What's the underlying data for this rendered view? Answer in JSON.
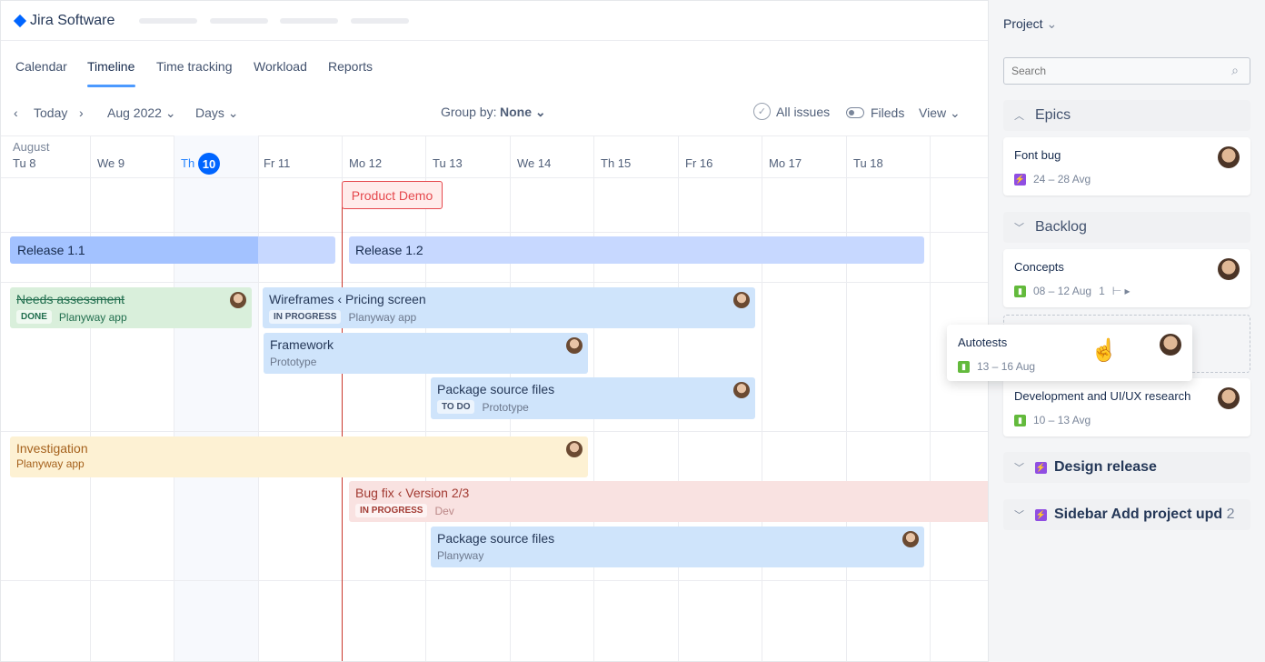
{
  "app": {
    "name": "Jira Software",
    "brand_color": "#0065ff"
  },
  "tabs": [
    {
      "label": "Calendar"
    },
    {
      "label": "Timeline",
      "active": true
    },
    {
      "label": "Time tracking"
    },
    {
      "label": "Workload"
    },
    {
      "label": "Reports"
    }
  ],
  "toolbar": {
    "today": "Today",
    "month": "Aug 2022",
    "scale": "Days",
    "group_by_label": "Group by:",
    "group_by_value": "None",
    "all_issues": "All issues",
    "fields": "Fileds",
    "view": "View"
  },
  "calendar": {
    "month": "August",
    "days": [
      "Tu 8",
      "We 9",
      "Th",
      "Fr 11",
      "Mo 12",
      "Tu 13",
      "We 14",
      "Th 15",
      "Fr 16",
      "Mo 17",
      "Tu 18"
    ],
    "today_num": "10"
  },
  "milestone": "Product Demo",
  "releases": [
    "Release 1.1",
    "Release 1.2"
  ],
  "bars": [
    {
      "title": "Needs assessment",
      "status": "DONE",
      "project": "Planyway app"
    },
    {
      "title": "Wireframes",
      "parent": "Pricing screen",
      "status": "IN PROGRESS",
      "project": "Planyway app"
    },
    {
      "title": "Framework",
      "project": "Prototype"
    },
    {
      "title": "Package source files",
      "status": "TO DO",
      "project": "Prototype"
    },
    {
      "title": "Investigation",
      "project": "Planyway app"
    },
    {
      "title": "Bug fix",
      "parent": "Version 2/3",
      "status": "IN PROGRESS",
      "project": "Dev"
    },
    {
      "title": "Package source files",
      "project": "Planyway"
    }
  ],
  "sidebar": {
    "project": "Project",
    "search_placeholder": "Search",
    "epics": {
      "label": "Epics",
      "cards": [
        {
          "title": "Font bug",
          "dates": "24 – 28 Avg",
          "type": "epic"
        }
      ]
    },
    "backlog": {
      "label": "Backlog",
      "cards": [
        {
          "title": "Concepts",
          "dates": "08 – 12 Aug",
          "children": "1",
          "type": "story"
        },
        {
          "title": "Development and UI/UX research",
          "dates": "10 – 13 Avg",
          "type": "story"
        }
      ]
    },
    "dragging": {
      "title": "Autotests",
      "dates": "13 – 16 Aug",
      "type": "story"
    },
    "groups": [
      {
        "label": "Design release"
      },
      {
        "label": "Sidebar Add project upd",
        "count": "2"
      }
    ]
  }
}
